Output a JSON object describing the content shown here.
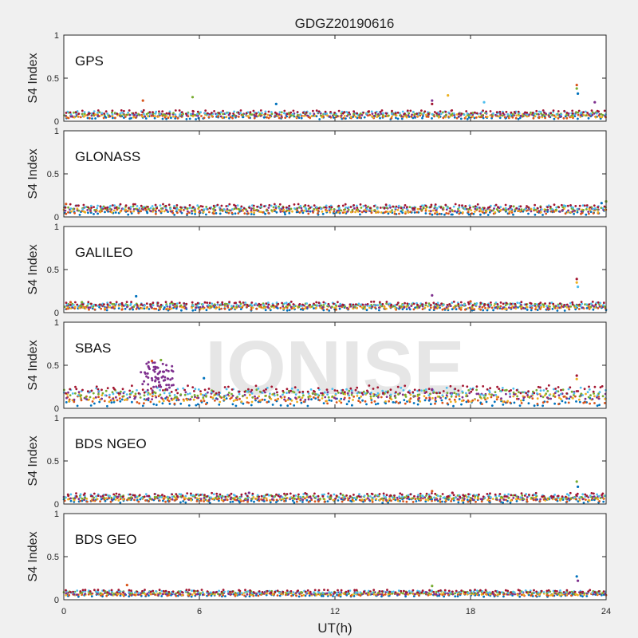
{
  "chart_data": {
    "type": "scatter",
    "title": "GDGZ20190616",
    "xlabel": "UT(h)",
    "ylabel": "S4 Index",
    "xlim": [
      0,
      24
    ],
    "ylim": [
      0,
      1
    ],
    "x_ticks": [
      "0",
      "6",
      "12",
      "18",
      "24"
    ],
    "y_ticks": [
      "0",
      "0.5",
      "1"
    ],
    "watermark": "IONISE",
    "grid": false,
    "colors": [
      "#0072BD",
      "#D95319",
      "#EDB120",
      "#7E2F8E",
      "#77AC30",
      "#4DBEEE",
      "#A2142F"
    ],
    "panels": [
      {
        "label": "GPS",
        "baseline_range": [
          0.03,
          0.12
        ],
        "features": [
          {
            "x": 3.5,
            "y": 0.24
          },
          {
            "x": 5.7,
            "y": 0.28
          },
          {
            "x": 9.4,
            "y": 0.2
          },
          {
            "x": 16.3,
            "y": 0.24
          },
          {
            "x": 16.3,
            "y": 0.2
          },
          {
            "x": 17.0,
            "y": 0.3
          },
          {
            "x": 18.6,
            "y": 0.22
          },
          {
            "x": 22.7,
            "y": 0.42
          },
          {
            "x": 22.7,
            "y": 0.38
          },
          {
            "x": 22.75,
            "y": 0.32
          },
          {
            "x": 23.5,
            "y": 0.22
          }
        ]
      },
      {
        "label": "GLONASS",
        "baseline_range": [
          0.03,
          0.14
        ],
        "features": [
          {
            "x": 0.1,
            "y": 0.15
          },
          {
            "x": 24.0,
            "y": 0.18
          },
          {
            "x": 23.8,
            "y": 0.16
          }
        ]
      },
      {
        "label": "GALILEO",
        "baseline_range": [
          0.03,
          0.12
        ],
        "features": [
          {
            "x": 0.3,
            "y": 0.12
          },
          {
            "x": 0.8,
            "y": 0.12
          },
          {
            "x": 3.2,
            "y": 0.19
          },
          {
            "x": 16.3,
            "y": 0.2
          },
          {
            "x": 22.7,
            "y": 0.39
          },
          {
            "x": 22.7,
            "y": 0.35
          },
          {
            "x": 22.75,
            "y": 0.3
          },
          {
            "x": 18.0,
            "y": 0.13
          }
        ]
      },
      {
        "label": "SBAS",
        "baseline_range": [
          0.04,
          0.25
        ],
        "burst": {
          "x_range": [
            3.4,
            4.9
          ],
          "y_range": [
            0.2,
            0.55
          ]
        },
        "features": [
          {
            "x": 3.9,
            "y": 0.55
          },
          {
            "x": 4.3,
            "y": 0.56
          },
          {
            "x": 6.2,
            "y": 0.35
          },
          {
            "x": 16.3,
            "y": 0.22
          },
          {
            "x": 22.7,
            "y": 0.38
          },
          {
            "x": 22.7,
            "y": 0.34
          }
        ]
      },
      {
        "label": "BDS NGEO",
        "baseline_range": [
          0.02,
          0.12
        ],
        "features": [
          {
            "x": 16.3,
            "y": 0.15
          },
          {
            "x": 22.7,
            "y": 0.26
          },
          {
            "x": 22.75,
            "y": 0.2
          },
          {
            "x": 8.2,
            "y": 0.13
          },
          {
            "x": 17.2,
            "y": 0.13
          }
        ]
      },
      {
        "label": "BDS GEO",
        "baseline_range": [
          0.04,
          0.11
        ],
        "features": [
          {
            "x": 2.8,
            "y": 0.17
          },
          {
            "x": 16.3,
            "y": 0.16
          },
          {
            "x": 22.7,
            "y": 0.27
          },
          {
            "x": 22.75,
            "y": 0.22
          }
        ]
      }
    ]
  }
}
